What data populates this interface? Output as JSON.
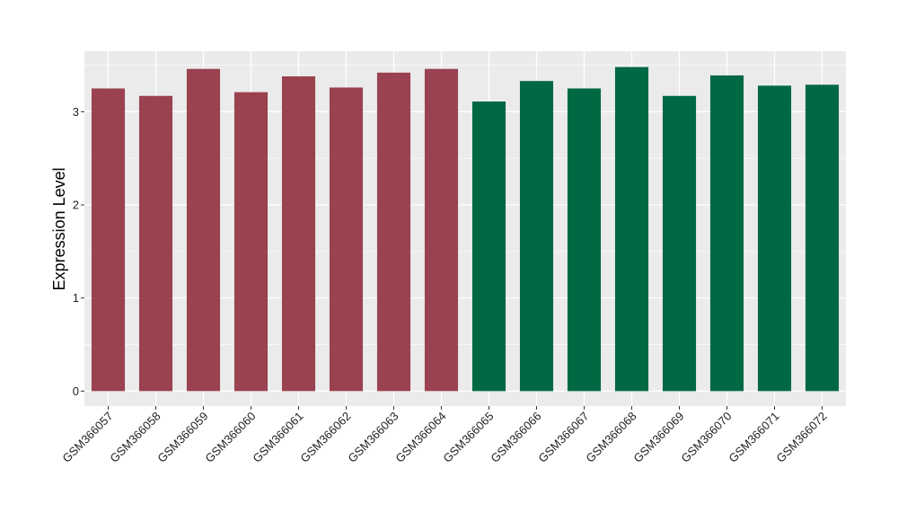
{
  "chart_data": {
    "type": "bar",
    "title": "",
    "xlabel": "",
    "ylabel": "Expression Level",
    "ylim": [
      -0.16,
      3.65
    ],
    "yticks": [
      0,
      1,
      2,
      3
    ],
    "grid": true,
    "legend": "none",
    "categories": [
      "GSM366057",
      "GSM366058",
      "GSM366059",
      "GSM366060",
      "GSM366061",
      "GSM366062",
      "GSM366063",
      "GSM366064",
      "GSM366065",
      "GSM366066",
      "GSM366067",
      "GSM366068",
      "GSM366069",
      "GSM366070",
      "GSM366071",
      "GSM366072"
    ],
    "values": [
      3.25,
      3.17,
      3.46,
      3.21,
      3.38,
      3.26,
      3.42,
      3.46,
      3.11,
      3.33,
      3.25,
      3.48,
      3.17,
      3.39,
      3.28,
      3.29
    ],
    "bar_colors": [
      "#9a4250",
      "#9a4250",
      "#9a4250",
      "#9a4250",
      "#9a4250",
      "#9a4250",
      "#9a4250",
      "#9a4250",
      "#006843",
      "#006843",
      "#006843",
      "#006843",
      "#006843",
      "#006843",
      "#006843",
      "#006843"
    ],
    "panel_background": "#ebebeb",
    "grid_color": "#ffffff"
  }
}
